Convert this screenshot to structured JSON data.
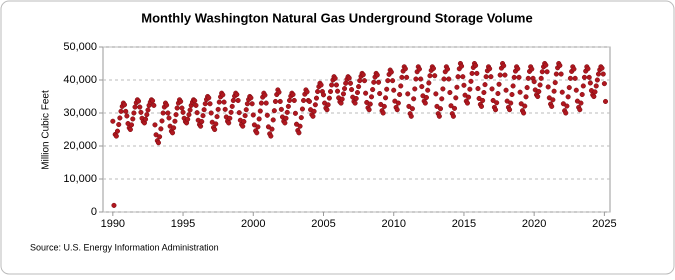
{
  "chart_data": {
    "type": "scatter",
    "title": "Monthly Washington Natural Gas Underground Storage Volume",
    "y_label": "Million Cubic Feet",
    "source": "Source: U.S. Energy Information Administration",
    "xlim": [
      1989.3,
      2025.4
    ],
    "xticks": [
      1990,
      1995,
      2000,
      2005,
      2010,
      2015,
      2020,
      2025
    ],
    "ylim": [
      0,
      50000
    ],
    "yticks": [
      {
        "value": 0,
        "label": "0"
      },
      {
        "value": 10000,
        "label": "10,000"
      },
      {
        "value": 20000,
        "label": "20,000"
      },
      {
        "value": 30000,
        "label": "30,000"
      },
      {
        "value": 40000,
        "label": "40,000"
      },
      {
        "value": 50000,
        "label": "50,000"
      }
    ],
    "grid": true,
    "color": "#b0171f",
    "x": [
      1990,
      1990.08,
      1990.17,
      1990.25,
      1990.33,
      1990.42,
      1990.5,
      1990.58,
      1990.67,
      1990.75,
      1990.83,
      1990.92,
      1991,
      1991.08,
      1991.17,
      1991.25,
      1991.33,
      1991.42,
      1991.5,
      1991.58,
      1991.67,
      1991.75,
      1991.83,
      1991.92,
      1992,
      1992.08,
      1992.17,
      1992.25,
      1992.33,
      1992.42,
      1992.5,
      1992.58,
      1992.67,
      1992.75,
      1992.83,
      1992.92,
      1993,
      1993.08,
      1993.17,
      1993.25,
      1993.33,
      1993.42,
      1993.5,
      1993.58,
      1993.67,
      1993.75,
      1993.83,
      1993.92,
      1994,
      1994.08,
      1994.17,
      1994.25,
      1994.33,
      1994.42,
      1994.5,
      1994.58,
      1994.67,
      1994.75,
      1994.83,
      1994.92,
      1995,
      1995.08,
      1995.17,
      1995.25,
      1995.33,
      1995.42,
      1995.5,
      1995.58,
      1995.67,
      1995.75,
      1995.83,
      1995.92,
      1996,
      1996.08,
      1996.17,
      1996.25,
      1996.33,
      1996.42,
      1996.5,
      1996.58,
      1996.67,
      1996.75,
      1996.83,
      1996.92,
      1997,
      1997.08,
      1997.17,
      1997.25,
      1997.33,
      1997.42,
      1997.5,
      1997.58,
      1997.67,
      1997.75,
      1997.83,
      1997.92,
      1998,
      1998.08,
      1998.17,
      1998.25,
      1998.33,
      1998.42,
      1998.5,
      1998.58,
      1998.67,
      1998.75,
      1998.83,
      1998.92,
      1999,
      1999.08,
      1999.17,
      1999.25,
      1999.33,
      1999.42,
      1999.5,
      1999.58,
      1999.67,
      1999.75,
      1999.83,
      1999.92,
      2000,
      2000.08,
      2000.17,
      2000.25,
      2000.33,
      2000.42,
      2000.5,
      2000.58,
      2000.67,
      2000.75,
      2000.83,
      2000.92,
      2001,
      2001.08,
      2001.17,
      2001.25,
      2001.33,
      2001.42,
      2001.5,
      2001.58,
      2001.67,
      2001.75,
      2001.83,
      2001.92,
      2002,
      2002.08,
      2002.17,
      2002.25,
      2002.33,
      2002.42,
      2002.5,
      2002.58,
      2002.67,
      2002.75,
      2002.83,
      2002.92,
      2003,
      2003.08,
      2003.17,
      2003.25,
      2003.33,
      2003.42,
      2003.5,
      2003.58,
      2003.67,
      2003.75,
      2003.83,
      2003.92,
      2004,
      2004.08,
      2004.17,
      2004.25,
      2004.33,
      2004.42,
      2004.5,
      2004.58,
      2004.67,
      2004.75,
      2004.83,
      2004.92,
      2005,
      2005.08,
      2005.17,
      2005.25,
      2005.33,
      2005.42,
      2005.5,
      2005.58,
      2005.67,
      2005.75,
      2005.83,
      2005.92,
      2006,
      2006.08,
      2006.17,
      2006.25,
      2006.33,
      2006.42,
      2006.5,
      2006.58,
      2006.67,
      2006.75,
      2006.83,
      2006.92,
      2007,
      2007.08,
      2007.17,
      2007.25,
      2007.33,
      2007.42,
      2007.5,
      2007.58,
      2007.67,
      2007.75,
      2007.83,
      2007.92,
      2008,
      2008.08,
      2008.17,
      2008.25,
      2008.33,
      2008.42,
      2008.5,
      2008.58,
      2008.67,
      2008.75,
      2008.83,
      2008.92,
      2009,
      2009.08,
      2009.17,
      2009.25,
      2009.33,
      2009.42,
      2009.5,
      2009.58,
      2009.67,
      2009.75,
      2009.83,
      2009.92,
      2010,
      2010.08,
      2010.17,
      2010.25,
      2010.33,
      2010.42,
      2010.5,
      2010.58,
      2010.67,
      2010.75,
      2010.83,
      2010.92,
      2011,
      2011.08,
      2011.17,
      2011.25,
      2011.33,
      2011.42,
      2011.5,
      2011.58,
      2011.67,
      2011.75,
      2011.83,
      2011.92,
      2012,
      2012.08,
      2012.17,
      2012.25,
      2012.33,
      2012.42,
      2012.5,
      2012.58,
      2012.67,
      2012.75,
      2012.83,
      2012.92,
      2013,
      2013.08,
      2013.17,
      2013.25,
      2013.33,
      2013.42,
      2013.5,
      2013.58,
      2013.67,
      2013.75,
      2013.83,
      2013.92,
      2014,
      2014.08,
      2014.17,
      2014.25,
      2014.33,
      2014.42,
      2014.5,
      2014.58,
      2014.67,
      2014.75,
      2014.83,
      2014.92,
      2015,
      2015.08,
      2015.17,
      2015.25,
      2015.33,
      2015.42,
      2015.5,
      2015.58,
      2015.67,
      2015.75,
      2015.83,
      2015.92,
      2016,
      2016.08,
      2016.17,
      2016.25,
      2016.33,
      2016.42,
      2016.5,
      2016.58,
      2016.67,
      2016.75,
      2016.83,
      2016.92,
      2017,
      2017.08,
      2017.17,
      2017.25,
      2017.33,
      2017.42,
      2017.5,
      2017.58,
      2017.67,
      2017.75,
      2017.83,
      2017.92,
      2018,
      2018.08,
      2018.17,
      2018.25,
      2018.33,
      2018.42,
      2018.5,
      2018.58,
      2018.67,
      2018.75,
      2018.83,
      2018.92,
      2019,
      2019.08,
      2019.17,
      2019.25,
      2019.33,
      2019.42,
      2019.5,
      2019.58,
      2019.67,
      2019.75,
      2019.83,
      2019.92,
      2020,
      2020.08,
      2020.17,
      2020.25,
      2020.33,
      2020.42,
      2020.5,
      2020.58,
      2020.67,
      2020.75,
      2020.83,
      2020.92,
      2021,
      2021.08,
      2021.17,
      2021.25,
      2021.33,
      2021.42,
      2021.5,
      2021.58,
      2021.67,
      2021.75,
      2021.83,
      2021.92,
      2022,
      2022.08,
      2022.17,
      2022.25,
      2022.33,
      2022.42,
      2022.5,
      2022.58,
      2022.67,
      2022.75,
      2022.83,
      2022.92,
      2023,
      2023.08,
      2023.17,
      2023.25,
      2023.33,
      2023.42,
      2023.5,
      2023.58,
      2023.67,
      2023.75,
      2023.83,
      2023.92,
      2024,
      2024.08,
      2024.17,
      2024.25,
      2024.33,
      2024.42,
      2024.5,
      2024.58,
      2024.67,
      2024.75,
      2024.83,
      2024.92,
      2025,
      2025.08
    ],
    "values": [
      27500,
      2000,
      23500,
      23000,
      24500,
      26500,
      28500,
      30500,
      32000,
      33000,
      32500,
      30500,
      29100,
      26800,
      25500,
      25000,
      26400,
      28200,
      30000,
      31800,
      33100,
      34000,
      33600,
      31800,
      30200,
      28400,
      27400,
      27000,
      28100,
      29500,
      30900,
      32300,
      33300,
      34000,
      33700,
      32300,
      26400,
      23400,
      21600,
      21000,
      22800,
      25200,
      27600,
      30000,
      31800,
      33000,
      32400,
      30000,
      28500,
      26000,
      24500,
      24000,
      25500,
      27500,
      29500,
      31500,
      33000,
      34000,
      33500,
      31500,
      30200,
      28400,
      27400,
      27000,
      28100,
      29500,
      30900,
      32300,
      33300,
      34000,
      33700,
      32300,
      30100,
      27800,
      26500,
      26000,
      27400,
      29200,
      31000,
      32800,
      34100,
      35000,
      34600,
      32800,
      30000,
      27200,
      25600,
      25000,
      26700,
      28900,
      31100,
      33300,
      34900,
      36000,
      35500,
      33300,
      31100,
      28800,
      27500,
      27000,
      28400,
      30200,
      32000,
      33800,
      35100,
      36000,
      35600,
      33800,
      30100,
      27800,
      26500,
      26000,
      27400,
      29200,
      31000,
      32800,
      34100,
      35000,
      34600,
      32800,
      29400,
      26400,
      24600,
      24000,
      25800,
      28200,
      30600,
      33000,
      34800,
      36000,
      35400,
      33000,
      29300,
      25800,
      23700,
      23000,
      25100,
      27900,
      30700,
      33500,
      35600,
      37000,
      36300,
      33500,
      31100,
      28800,
      27500,
      27000,
      28400,
      30200,
      32000,
      33800,
      35100,
      36000,
      35600,
      33800,
      29900,
      26600,
      24700,
      24000,
      26000,
      28600,
      31200,
      33800,
      35700,
      37000,
      36400,
      33800,
      33500,
      31000,
      29500,
      29000,
      30500,
      32500,
      34500,
      36500,
      38000,
      39000,
      38500,
      36500,
      35500,
      33000,
      31500,
      31000,
      32500,
      34500,
      36500,
      38500,
      40000,
      41000,
      40500,
      38500,
      36600,
      34600,
      33400,
      33000,
      34200,
      35800,
      37400,
      39000,
      40200,
      41000,
      40600,
      39000,
      37100,
      34800,
      33500,
      33000,
      34400,
      36200,
      38000,
      39800,
      41100,
      42000,
      41600,
      39800,
      36000,
      33200,
      31600,
      31000,
      32700,
      34900,
      37100,
      39300,
      40900,
      42000,
      41500,
      39300,
      35900,
      32600,
      30700,
      30000,
      32000,
      34600,
      37200,
      39800,
      41700,
      43000,
      42400,
      39800,
      36900,
      33600,
      31700,
      31000,
      33000,
      35600,
      38200,
      40800,
      42700,
      44000,
      43400,
      40800,
      35800,
      32000,
      29800,
      29000,
      31300,
      34300,
      37300,
      40300,
      42500,
      44000,
      43300,
      40300,
      38000,
      35200,
      33600,
      33000,
      34700,
      36900,
      39100,
      41300,
      42900,
      44000,
      43500,
      41300,
      35800,
      32000,
      29800,
      29000,
      31300,
      34300,
      37300,
      40300,
      42500,
      44000,
      43300,
      40300,
      36200,
      32200,
      29800,
      29000,
      31400,
      34600,
      37800,
      41000,
      43400,
      45000,
      44200,
      41000,
      38400,
      35400,
      33600,
      33000,
      34800,
      37200,
      39600,
      42000,
      43800,
      45000,
      44400,
      42000,
      37400,
      34400,
      32600,
      32000,
      33800,
      36200,
      38600,
      41000,
      42800,
      44000,
      43400,
      41000,
      37300,
      33800,
      31700,
      31000,
      33100,
      35900,
      38700,
      41500,
      43600,
      45000,
      44300,
      41500,
      36900,
      33600,
      31700,
      31000,
      33000,
      35600,
      38200,
      40800,
      42700,
      44000,
      43400,
      40800,
      36300,
      32800,
      30700,
      30000,
      32100,
      34900,
      37700,
      40500,
      42600,
      44000,
      43300,
      40500,
      39500,
      37000,
      35500,
      35000,
      36500,
      38500,
      40500,
      42500,
      44000,
      45000,
      44500,
      42500,
      37900,
      34600,
      32700,
      32000,
      34000,
      36600,
      39200,
      41800,
      43700,
      45000,
      44400,
      41800,
      36300,
      32800,
      30700,
      30000,
      32100,
      34900,
      37700,
      40500,
      42600,
      44000,
      43300,
      40500,
      36900,
      33600,
      31700,
      31000,
      33000,
      35600,
      38200,
      40800,
      42700,
      44000,
      43400,
      40800,
      39100,
      36800,
      35500,
      35000,
      36400,
      38200,
      40000,
      41800,
      43100,
      44000,
      43600,
      41800,
      38900,
      33500
    ]
  }
}
